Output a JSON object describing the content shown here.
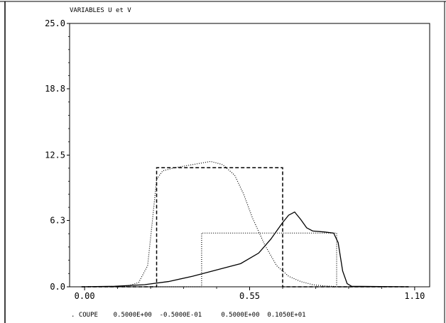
{
  "chart_data": {
    "type": "line",
    "title": "VARIABLES U et V",
    "xlabel": "",
    "ylabel": "",
    "xlim": [
      -0.05,
      1.15
    ],
    "ylim": [
      0,
      25
    ],
    "x_ticks": [
      0.0,
      0.55,
      1.1
    ],
    "x_tick_labels": [
      "0.00",
      "0.55",
      "1.10"
    ],
    "y_ticks": [
      0.0,
      6.3,
      12.5,
      18.8,
      25.0
    ],
    "y_tick_labels": [
      "0.0",
      "6.3",
      "12.5",
      "18.8",
      "25.0"
    ],
    "grid": false,
    "legend": "none",
    "footer": ". COUPE    0.5000E+00  -0.5000E-01     0.5000E+00  0.1050E+01",
    "series": [
      {
        "style": "dashed",
        "x": [
          -0.01,
          0.24,
          0.24,
          0.66,
          0.66,
          1.08
        ],
        "y": [
          0.0,
          0.0,
          11.3,
          11.3,
          0.0,
          0.0
        ]
      },
      {
        "style": "dotted",
        "x": [
          -0.01,
          0.39,
          0.39,
          0.84,
          0.84,
          1.08
        ],
        "y": [
          0.0,
          0.0,
          5.1,
          5.1,
          0.0,
          0.0
        ]
      },
      {
        "style": "dotted",
        "x": [
          -0.01,
          0.14,
          0.18,
          0.21,
          0.225,
          0.24,
          0.26,
          0.3,
          0.36,
          0.42,
          0.46,
          0.5,
          0.53,
          0.56,
          0.6,
          0.64,
          0.68,
          0.72,
          0.76,
          0.8,
          0.85,
          1.08
        ],
        "y": [
          0.0,
          0.05,
          0.4,
          2.0,
          6.0,
          10.2,
          11.0,
          11.3,
          11.6,
          11.9,
          11.6,
          10.6,
          8.8,
          6.5,
          4.0,
          2.0,
          1.0,
          0.5,
          0.2,
          0.08,
          0.0,
          0.0
        ]
      },
      {
        "style": "solid",
        "x": [
          -0.01,
          0.1,
          0.2,
          0.28,
          0.36,
          0.44,
          0.52,
          0.58,
          0.62,
          0.66,
          0.68,
          0.7,
          0.72,
          0.74,
          0.76,
          0.8,
          0.83,
          0.845,
          0.86,
          0.875,
          0.89,
          1.08
        ],
        "y": [
          0.0,
          0.05,
          0.2,
          0.5,
          1.0,
          1.6,
          2.2,
          3.2,
          4.5,
          6.1,
          6.8,
          7.1,
          6.4,
          5.6,
          5.3,
          5.2,
          5.1,
          4.2,
          1.5,
          0.3,
          0.05,
          0.0
        ]
      }
    ]
  }
}
